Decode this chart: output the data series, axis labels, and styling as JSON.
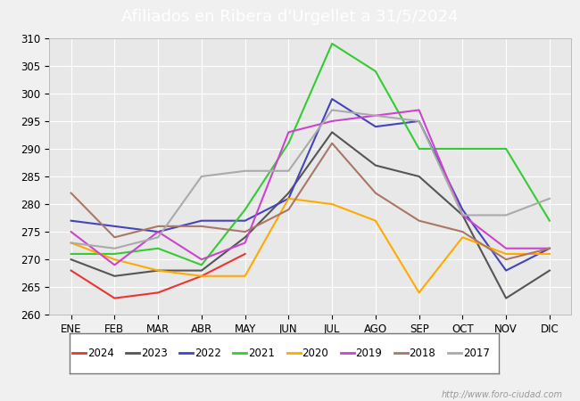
{
  "title": "Afiliados en Ribera d'Urgellet a 31/5/2024",
  "ylim": [
    260,
    310
  ],
  "yticks": [
    260,
    265,
    270,
    275,
    280,
    285,
    290,
    295,
    300,
    305,
    310
  ],
  "months": [
    "ENE",
    "FEB",
    "MAR",
    "ABR",
    "MAY",
    "JUN",
    "JUL",
    "AGO",
    "SEP",
    "OCT",
    "NOV",
    "DIC"
  ],
  "series_order": [
    "2024",
    "2023",
    "2022",
    "2021",
    "2020",
    "2019",
    "2018",
    "2017"
  ],
  "series": {
    "2024": {
      "color": "#ee3333",
      "data": [
        268,
        263,
        264,
        267,
        271,
        null,
        null,
        null,
        null,
        null,
        null,
        null
      ]
    },
    "2023": {
      "color": "#555555",
      "data": [
        270,
        267,
        268,
        268,
        274,
        282,
        293,
        287,
        285,
        278,
        263,
        268
      ]
    },
    "2022": {
      "color": "#4444bb",
      "data": [
        277,
        276,
        275,
        277,
        277,
        281,
        299,
        294,
        295,
        279,
        268,
        272
      ]
    },
    "2021": {
      "color": "#33cc33",
      "data": [
        271,
        271,
        272,
        269,
        279,
        291,
        309,
        304,
        290,
        290,
        290,
        277
      ]
    },
    "2020": {
      "color": "#ffaa00",
      "data": [
        273,
        270,
        268,
        267,
        267,
        281,
        280,
        277,
        264,
        274,
        271,
        271
      ]
    },
    "2019": {
      "color": "#cc44cc",
      "data": [
        275,
        269,
        275,
        270,
        273,
        293,
        295,
        296,
        297,
        278,
        272,
        272
      ]
    },
    "2018": {
      "color": "#aa7766",
      "data": [
        282,
        274,
        276,
        276,
        275,
        279,
        291,
        282,
        277,
        275,
        270,
        272
      ]
    },
    "2017": {
      "color": "#aaaaaa",
      "data": [
        273,
        272,
        274,
        285,
        286,
        286,
        297,
        296,
        295,
        278,
        278,
        281
      ]
    }
  },
  "footer_url": "http://www.foro-ciudad.com",
  "bg_plot": "#e8e8e8",
  "bg_fig": "#f0f0f0",
  "grid_color": "#ffffff",
  "title_bg": "#5b88cc",
  "title_color": "#ffffff",
  "title_fontsize": 13,
  "tick_fontsize": 8.5,
  "linewidth": 1.5
}
